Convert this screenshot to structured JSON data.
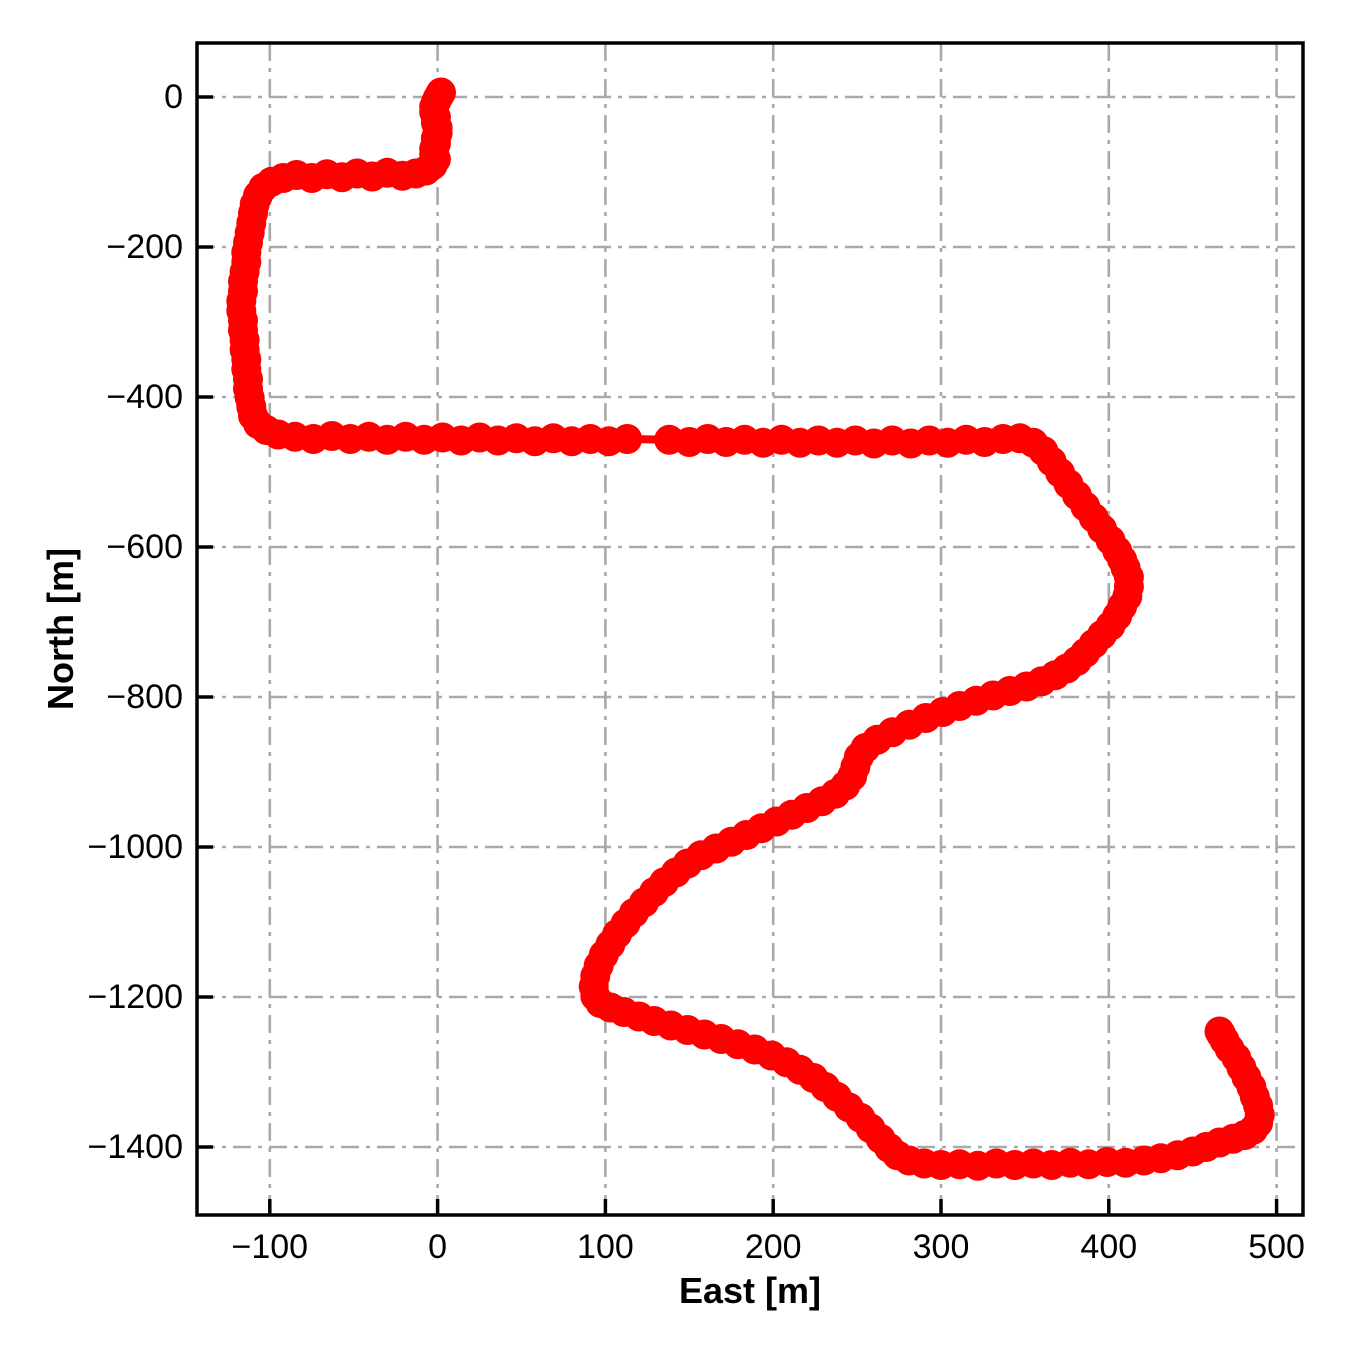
{
  "figure": {
    "background": "#ffffff",
    "spine_color": "#000000",
    "grid_color": "#a9a9a9",
    "accent_color": "#ff0000"
  },
  "chart_data": {
    "type": "scatter",
    "title": "",
    "xlabel": "East [m]",
    "ylabel": "North [m]",
    "xlim": [
      -143,
      516
    ],
    "ylim": [
      -1491,
      72
    ],
    "xticks": [
      -100,
      0,
      100,
      200,
      300,
      400,
      500
    ],
    "yticks": [
      0,
      -200,
      -400,
      -600,
      -800,
      -1000,
      -1200,
      -1400
    ],
    "grid": true,
    "grid_style": "dash-dot",
    "legend": "none",
    "series": [
      {
        "name": "trajectory",
        "marker": "circle",
        "marker_color": "#ff0000",
        "line_color": "#ff0000",
        "points": [
          [
            2,
            6
          ],
          [
            1,
            2
          ],
          [
            0,
            -2
          ],
          [
            -1,
            -7
          ],
          [
            -2,
            -13
          ],
          [
            -2,
            -20
          ],
          [
            -1,
            -27
          ],
          [
            -1,
            -34
          ],
          [
            0,
            -41
          ],
          [
            0,
            -48
          ],
          [
            -1,
            -55
          ],
          [
            -1,
            -62
          ],
          [
            -2,
            -69
          ],
          [
            -2,
            -76
          ],
          [
            -1,
            -83
          ],
          [
            -3,
            -91
          ],
          [
            -7,
            -98
          ],
          [
            -13,
            -102
          ],
          [
            -21,
            -105
          ],
          [
            -30,
            -101
          ],
          [
            -39,
            -106
          ],
          [
            -48,
            -102
          ],
          [
            -57,
            -107
          ],
          [
            -66,
            -103
          ],
          [
            -75,
            -108
          ],
          [
            -84,
            -104
          ],
          [
            -92,
            -108
          ],
          [
            -99,
            -113
          ],
          [
            -104,
            -121
          ],
          [
            -107,
            -131
          ],
          [
            -109,
            -143
          ],
          [
            -110,
            -155
          ],
          [
            -111,
            -168
          ],
          [
            -112,
            -181
          ],
          [
            -113,
            -194
          ],
          [
            -114,
            -207
          ],
          [
            -114,
            -220
          ],
          [
            -115,
            -233
          ],
          [
            -116,
            -246
          ],
          [
            -116,
            -259
          ],
          [
            -117,
            -272
          ],
          [
            -117,
            -285
          ],
          [
            -116,
            -298
          ],
          [
            -116,
            -311
          ],
          [
            -115,
            -324
          ],
          [
            -115,
            -337
          ],
          [
            -114,
            -350
          ],
          [
            -114,
            -363
          ],
          [
            -113,
            -376
          ],
          [
            -113,
            -389
          ],
          [
            -112,
            -401
          ],
          [
            -111,
            -413
          ],
          [
            -110,
            -425
          ],
          [
            -107,
            -436
          ],
          [
            -102,
            -444
          ],
          [
            -95,
            -450
          ],
          [
            -85,
            -453
          ],
          [
            -74,
            -456
          ],
          [
            -63,
            -452
          ],
          [
            -52,
            -456
          ],
          [
            -41,
            -453
          ],
          [
            -30,
            -457
          ],
          [
            -19,
            -453
          ],
          [
            -8,
            -457
          ],
          [
            3,
            -454
          ],
          [
            14,
            -458
          ],
          [
            25,
            -454
          ],
          [
            36,
            -458
          ],
          [
            47,
            -455
          ],
          [
            58,
            -459
          ],
          [
            69,
            -455
          ],
          [
            80,
            -459
          ],
          [
            91,
            -456
          ],
          [
            102,
            -459
          ],
          [
            113,
            -456
          ],
          [
            138,
            -457
          ],
          [
            150,
            -460
          ],
          [
            161,
            -456
          ],
          [
            172,
            -460
          ],
          [
            183,
            -457
          ],
          [
            194,
            -461
          ],
          [
            205,
            -457
          ],
          [
            216,
            -461
          ],
          [
            227,
            -458
          ],
          [
            238,
            -461
          ],
          [
            249,
            -458
          ],
          [
            260,
            -462
          ],
          [
            271,
            -458
          ],
          [
            282,
            -462
          ],
          [
            293,
            -458
          ],
          [
            304,
            -461
          ],
          [
            315,
            -457
          ],
          [
            326,
            -460
          ],
          [
            337,
            -456
          ],
          [
            347,
            -455
          ],
          [
            355,
            -461
          ],
          [
            361,
            -472
          ],
          [
            366,
            -486
          ],
          [
            371,
            -501
          ],
          [
            376,
            -516
          ],
          [
            381,
            -531
          ],
          [
            386,
            -546
          ],
          [
            391,
            -561
          ],
          [
            396,
            -576
          ],
          [
            401,
            -591
          ],
          [
            405,
            -605
          ],
          [
            408,
            -617
          ],
          [
            410,
            -628
          ],
          [
            412,
            -640
          ],
          [
            412,
            -653
          ],
          [
            411,
            -666
          ],
          [
            408,
            -679
          ],
          [
            405,
            -692
          ],
          [
            401,
            -705
          ],
          [
            396,
            -717
          ],
          [
            391,
            -729
          ],
          [
            386,
            -741
          ],
          [
            381,
            -752
          ],
          [
            375,
            -762
          ],
          [
            368,
            -771
          ],
          [
            360,
            -779
          ],
          [
            351,
            -786
          ],
          [
            341,
            -792
          ],
          [
            331,
            -798
          ],
          [
            321,
            -805
          ],
          [
            311,
            -812
          ],
          [
            301,
            -820
          ],
          [
            291,
            -828
          ],
          [
            281,
            -837
          ],
          [
            271,
            -847
          ],
          [
            262,
            -857
          ],
          [
            255,
            -868
          ],
          [
            251,
            -880
          ],
          [
            249,
            -893
          ],
          [
            247,
            -906
          ],
          [
            243,
            -918
          ],
          [
            237,
            -929
          ],
          [
            229,
            -939
          ],
          [
            220,
            -948
          ],
          [
            211,
            -957
          ],
          [
            202,
            -966
          ],
          [
            193,
            -975
          ],
          [
            184,
            -984
          ],
          [
            175,
            -993
          ],
          [
            166,
            -1002
          ],
          [
            157,
            -1011
          ],
          [
            149,
            -1022
          ],
          [
            142,
            -1034
          ],
          [
            135,
            -1047
          ],
          [
            129,
            -1060
          ],
          [
            123,
            -1074
          ],
          [
            117,
            -1088
          ],
          [
            112,
            -1102
          ],
          [
            107,
            -1116
          ],
          [
            103,
            -1130
          ],
          [
            99,
            -1144
          ],
          [
            96,
            -1158
          ],
          [
            94,
            -1172
          ],
          [
            93,
            -1186
          ],
          [
            94,
            -1199
          ],
          [
            97,
            -1208
          ],
          [
            103,
            -1214
          ],
          [
            111,
            -1220
          ],
          [
            120,
            -1226
          ],
          [
            129,
            -1232
          ],
          [
            139,
            -1238
          ],
          [
            149,
            -1244
          ],
          [
            159,
            -1250
          ],
          [
            169,
            -1256
          ],
          [
            179,
            -1263
          ],
          [
            189,
            -1270
          ],
          [
            199,
            -1278
          ],
          [
            208,
            -1287
          ],
          [
            216,
            -1297
          ],
          [
            224,
            -1308
          ],
          [
            231,
            -1320
          ],
          [
            238,
            -1333
          ],
          [
            245,
            -1347
          ],
          [
            252,
            -1361
          ],
          [
            258,
            -1375
          ],
          [
            264,
            -1389
          ],
          [
            269,
            -1401
          ],
          [
            274,
            -1411
          ],
          [
            281,
            -1418
          ],
          [
            290,
            -1422
          ],
          [
            300,
            -1424
          ],
          [
            311,
            -1423
          ],
          [
            322,
            -1425
          ],
          [
            333,
            -1422
          ],
          [
            344,
            -1424
          ],
          [
            355,
            -1422
          ],
          [
            366,
            -1424
          ],
          [
            377,
            -1421
          ],
          [
            388,
            -1423
          ],
          [
            399,
            -1420
          ],
          [
            410,
            -1421
          ],
          [
            421,
            -1418
          ],
          [
            431,
            -1415
          ],
          [
            441,
            -1411
          ],
          [
            450,
            -1406
          ],
          [
            458,
            -1400
          ],
          [
            466,
            -1394
          ],
          [
            474,
            -1389
          ],
          [
            481,
            -1384
          ],
          [
            486,
            -1377
          ],
          [
            489,
            -1368
          ],
          [
            490,
            -1357
          ],
          [
            489,
            -1345
          ],
          [
            487,
            -1333
          ],
          [
            485,
            -1320
          ],
          [
            482,
            -1307
          ],
          [
            479,
            -1294
          ],
          [
            476,
            -1281
          ],
          [
            472,
            -1269
          ],
          [
            469,
            -1258
          ],
          [
            467,
            -1250
          ],
          [
            466,
            -1246
          ]
        ]
      }
    ]
  }
}
